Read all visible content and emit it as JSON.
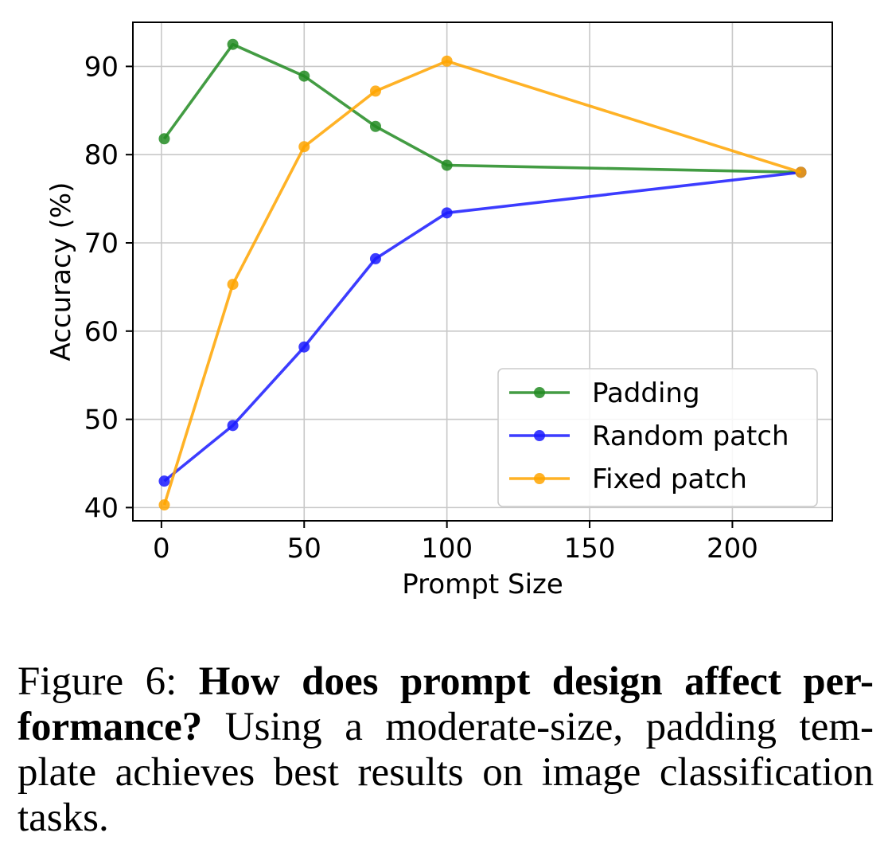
{
  "chart_data": {
    "type": "line",
    "xlabel": "Prompt Size",
    "ylabel": "Accuracy (%)",
    "xlim": [
      -10,
      235
    ],
    "ylim": [
      38.5,
      95
    ],
    "xticks": [
      0,
      50,
      100,
      150,
      200
    ],
    "yticks": [
      40,
      50,
      60,
      70,
      80,
      90
    ],
    "grid": true,
    "legend_position": "lower-right",
    "series": [
      {
        "name": "Padding",
        "color": "#228B22",
        "x": [
          1,
          25,
          50,
          75,
          100,
          224
        ],
        "y": [
          81.8,
          92.5,
          88.9,
          83.2,
          78.8,
          78.0
        ]
      },
      {
        "name": "Random patch",
        "color": "#1a1aff",
        "x": [
          1,
          25,
          50,
          75,
          100,
          224
        ],
        "y": [
          43.0,
          49.3,
          58.2,
          68.2,
          73.4,
          78.0
        ]
      },
      {
        "name": "Fixed patch",
        "color": "#FFA500",
        "x": [
          1,
          25,
          50,
          75,
          100,
          224
        ],
        "y": [
          40.3,
          65.3,
          80.9,
          87.2,
          90.6,
          78.0
        ]
      }
    ]
  },
  "caption": {
    "label": "Figure 6:",
    "bold": "How does prompt design affect performance?",
    "bold_display": "How does prompt design affect per-formance?",
    "text": "Using a moderate-size, padding template achieves best results on image classification tasks.",
    "text_display": "Using a moderate-size, padding tem-plate achieves best results on image classification tasks."
  }
}
